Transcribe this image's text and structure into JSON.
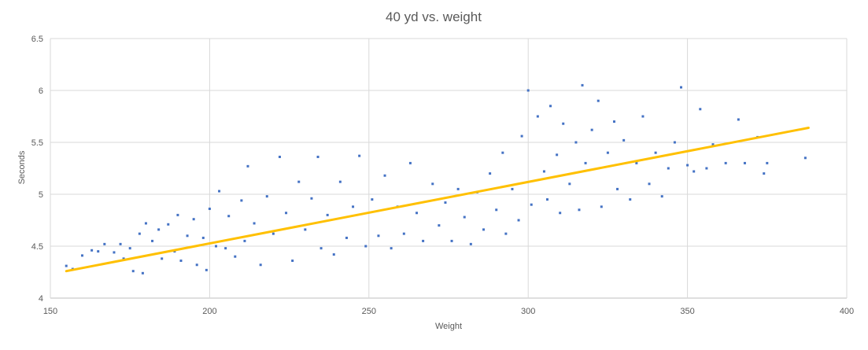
{
  "chart_data": {
    "type": "scatter",
    "title": "40 yd vs. weight",
    "xlabel": "Weight",
    "ylabel": "Seconds",
    "xlim": [
      150,
      400
    ],
    "ylim": [
      4,
      6.5
    ],
    "x_ticks": [
      150,
      200,
      250,
      300,
      350,
      400
    ],
    "y_ticks": [
      4,
      4.5,
      5,
      5.5,
      6,
      6.5
    ],
    "y_tick_labels": [
      "4",
      "4.5",
      "5",
      "5.5",
      "6",
      "6.5"
    ],
    "grid": true,
    "legend": "none",
    "series": [
      {
        "kind": "points",
        "color": "#4472C4",
        "values": [
          [
            155,
            4.31
          ],
          [
            157,
            4.28
          ],
          [
            160,
            4.41
          ],
          [
            163,
            4.46
          ],
          [
            165,
            4.45
          ],
          [
            167,
            4.52
          ],
          [
            170,
            4.44
          ],
          [
            172,
            4.52
          ],
          [
            173,
            4.38
          ],
          [
            175,
            4.48
          ],
          [
            176,
            4.26
          ],
          [
            178,
            4.62
          ],
          [
            179,
            4.24
          ],
          [
            180,
            4.72
          ],
          [
            182,
            4.55
          ],
          [
            184,
            4.66
          ],
          [
            185,
            4.38
          ],
          [
            187,
            4.71
          ],
          [
            189,
            4.45
          ],
          [
            190,
            4.8
          ],
          [
            191,
            4.36
          ],
          [
            193,
            4.6
          ],
          [
            195,
            4.76
          ],
          [
            196,
            4.32
          ],
          [
            198,
            4.58
          ],
          [
            199,
            4.27
          ],
          [
            200,
            4.86
          ],
          [
            202,
            4.5
          ],
          [
            203,
            5.03
          ],
          [
            205,
            4.48
          ],
          [
            206,
            4.79
          ],
          [
            208,
            4.4
          ],
          [
            210,
            4.94
          ],
          [
            211,
            4.55
          ],
          [
            212,
            5.27
          ],
          [
            214,
            4.72
          ],
          [
            216,
            4.32
          ],
          [
            218,
            4.98
          ],
          [
            220,
            4.62
          ],
          [
            222,
            5.36
          ],
          [
            224,
            4.82
          ],
          [
            226,
            4.36
          ],
          [
            228,
            5.12
          ],
          [
            230,
            4.66
          ],
          [
            232,
            4.96
          ],
          [
            234,
            5.36
          ],
          [
            235,
            4.48
          ],
          [
            237,
            4.8
          ],
          [
            239,
            4.42
          ],
          [
            241,
            5.12
          ],
          [
            243,
            4.58
          ],
          [
            245,
            4.88
          ],
          [
            247,
            5.37
          ],
          [
            249,
            4.5
          ],
          [
            251,
            4.95
          ],
          [
            253,
            4.6
          ],
          [
            255,
            5.18
          ],
          [
            257,
            4.48
          ],
          [
            259,
            4.88
          ],
          [
            261,
            4.62
          ],
          [
            263,
            5.3
          ],
          [
            265,
            4.82
          ],
          [
            267,
            4.55
          ],
          [
            270,
            5.1
          ],
          [
            272,
            4.7
          ],
          [
            274,
            4.92
          ],
          [
            276,
            4.55
          ],
          [
            278,
            5.05
          ],
          [
            280,
            4.78
          ],
          [
            282,
            4.52
          ],
          [
            284,
            5.02
          ],
          [
            286,
            4.66
          ],
          [
            288,
            5.2
          ],
          [
            290,
            4.85
          ],
          [
            292,
            5.4
          ],
          [
            293,
            4.62
          ],
          [
            295,
            5.05
          ],
          [
            297,
            4.75
          ],
          [
            298,
            5.56
          ],
          [
            300,
            6.0
          ],
          [
            301,
            4.9
          ],
          [
            303,
            5.75
          ],
          [
            305,
            5.22
          ],
          [
            306,
            4.95
          ],
          [
            307,
            5.85
          ],
          [
            309,
            5.38
          ],
          [
            310,
            4.82
          ],
          [
            311,
            5.68
          ],
          [
            313,
            5.1
          ],
          [
            315,
            5.5
          ],
          [
            316,
            4.85
          ],
          [
            317,
            6.05
          ],
          [
            318,
            5.3
          ],
          [
            320,
            5.62
          ],
          [
            322,
            5.9
          ],
          [
            323,
            4.88
          ],
          [
            325,
            5.4
          ],
          [
            327,
            5.7
          ],
          [
            328,
            5.05
          ],
          [
            330,
            5.52
          ],
          [
            332,
            4.95
          ],
          [
            334,
            5.3
          ],
          [
            336,
            5.75
          ],
          [
            338,
            5.1
          ],
          [
            340,
            5.4
          ],
          [
            342,
            4.98
          ],
          [
            344,
            5.25
          ],
          [
            346,
            5.5
          ],
          [
            348,
            6.03
          ],
          [
            350,
            5.28
          ],
          [
            352,
            5.22
          ],
          [
            354,
            5.82
          ],
          [
            356,
            5.25
          ],
          [
            358,
            5.48
          ],
          [
            362,
            5.3
          ],
          [
            366,
            5.72
          ],
          [
            368,
            5.3
          ],
          [
            372,
            5.55
          ],
          [
            374,
            5.2
          ],
          [
            375,
            5.3
          ],
          [
            387,
            5.35
          ]
        ]
      },
      {
        "kind": "trendline",
        "color": "#FFC000",
        "from": [
          155,
          4.26
        ],
        "to": [
          388,
          5.64
        ]
      }
    ]
  }
}
